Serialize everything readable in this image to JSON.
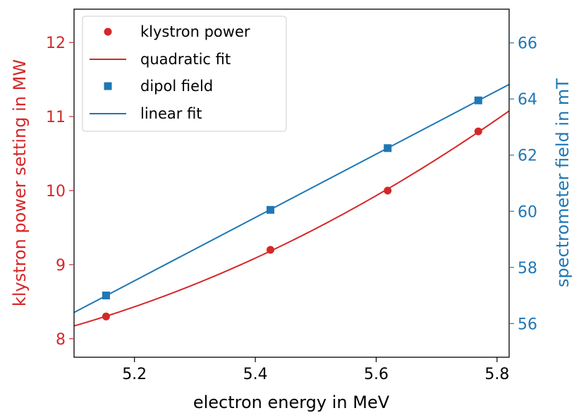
{
  "chart_data": {
    "type": "scatter",
    "xlabel": "electron energy in MeV",
    "ylabel_left": "klystron power setting in MW",
    "ylabel_right": "spectrometer field in mT",
    "xlim": [
      5.1,
      5.82
    ],
    "ylim_left": [
      7.75,
      12.45
    ],
    "ylim_right": [
      54.8,
      67.2
    ],
    "x_ticks": [
      "5.2",
      "5.4",
      "5.6",
      "5.8"
    ],
    "y_left_ticks": [
      "8",
      "9",
      "10",
      "11",
      "12"
    ],
    "y_right_ticks": [
      "56",
      "58",
      "60",
      "62",
      "64",
      "66"
    ],
    "grid": false,
    "legend_position": "top-left",
    "colors": {
      "left_axis": "#d62728",
      "right_axis": "#1f77b4"
    },
    "series": [
      {
        "name": "klystron power",
        "kind": "points",
        "axis": "left",
        "marker": "circle",
        "color": "#d62728",
        "x": [
          5.153,
          5.425,
          5.619,
          5.769
        ],
        "y": [
          8.3,
          9.2,
          10.0,
          10.8
        ]
      },
      {
        "name": "quadratic fit",
        "kind": "quadratic-fit",
        "axis": "left",
        "color": "#d62728",
        "x_range": [
          5.1,
          5.82
        ]
      },
      {
        "name": "dipol field",
        "kind": "points",
        "axis": "right",
        "marker": "square",
        "color": "#1f77b4",
        "x": [
          5.153,
          5.425,
          5.619,
          5.769
        ],
        "y": [
          57.0,
          60.05,
          62.25,
          63.95
        ]
      },
      {
        "name": "linear fit",
        "kind": "linear-fit",
        "axis": "right",
        "color": "#1f77b4",
        "x_range": [
          5.1,
          5.82
        ]
      }
    ]
  }
}
